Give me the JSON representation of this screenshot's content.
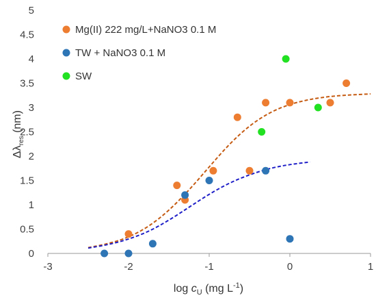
{
  "chart_data": {
    "type": "scatter",
    "xlabel": {
      "prefix": "log ",
      "var": "c",
      "sub": "U",
      "units_open": " (mg L",
      "sup": "-1",
      "units_close": ")"
    },
    "ylabel": {
      "main": "Δλ",
      "sub": "res",
      "units": " (nm)"
    },
    "xlim": [
      -3,
      1
    ],
    "ylim": [
      0,
      5
    ],
    "xticks": [
      -3,
      -2,
      -1,
      0,
      1
    ],
    "yticks": [
      0,
      0.5,
      1,
      1.5,
      2,
      2.5,
      3,
      3.5,
      4,
      4.5,
      5
    ],
    "xtick_labels": [
      "-3",
      "-2",
      "-1",
      "0",
      "1"
    ],
    "ytick_labels": [
      "0",
      "0.5",
      "1",
      "1.5",
      "2",
      "2.5",
      "3",
      "3.5",
      "4",
      "4.5",
      "5"
    ],
    "grid": false,
    "legend_position": "top-left",
    "series": [
      {
        "name": "Mg(II) 222 mg/L+NaNO3 0.1 M",
        "color": "#ED7D31",
        "points": [
          [
            -2.0,
            0.4
          ],
          [
            -1.4,
            1.4
          ],
          [
            -1.3,
            1.1
          ],
          [
            -0.95,
            1.7
          ],
          [
            -0.65,
            2.8
          ],
          [
            -0.5,
            1.7
          ],
          [
            -0.3,
            3.1
          ],
          [
            0.0,
            3.1
          ],
          [
            0.5,
            3.1
          ],
          [
            0.7,
            3.5
          ]
        ]
      },
      {
        "name": "TW + NaNO3 0.1 M",
        "color": "#2E75B6",
        "points": [
          [
            -2.3,
            0.0
          ],
          [
            -2.0,
            0.0
          ],
          [
            -1.7,
            0.2
          ],
          [
            -1.3,
            1.2
          ],
          [
            -1.0,
            1.5
          ],
          [
            -0.3,
            1.7
          ],
          [
            0.0,
            0.3
          ]
        ]
      },
      {
        "name": "SW",
        "color": "#22E022",
        "points": [
          [
            -0.35,
            2.5
          ],
          [
            -0.05,
            4.0
          ],
          [
            0.35,
            3.0
          ]
        ]
      }
    ],
    "fit_curves": [
      {
        "color": "#C55A11",
        "points": [
          [
            -2.5,
            0.12
          ],
          [
            -2.25,
            0.2
          ],
          [
            -2.0,
            0.33
          ],
          [
            -1.75,
            0.55
          ],
          [
            -1.5,
            0.88
          ],
          [
            -1.25,
            1.3
          ],
          [
            -1.0,
            1.78
          ],
          [
            -0.75,
            2.25
          ],
          [
            -0.5,
            2.63
          ],
          [
            -0.25,
            2.9
          ],
          [
            0.0,
            3.07
          ],
          [
            0.25,
            3.17
          ],
          [
            0.5,
            3.23
          ],
          [
            0.75,
            3.26
          ],
          [
            1.0,
            3.28
          ]
        ]
      },
      {
        "color": "#1F1FC8",
        "points": [
          [
            -2.5,
            0.11
          ],
          [
            -2.25,
            0.18
          ],
          [
            -2.0,
            0.29
          ],
          [
            -1.75,
            0.45
          ],
          [
            -1.5,
            0.68
          ],
          [
            -1.25,
            0.95
          ],
          [
            -1.0,
            1.22
          ],
          [
            -0.75,
            1.45
          ],
          [
            -0.5,
            1.62
          ],
          [
            -0.25,
            1.75
          ],
          [
            0.0,
            1.83
          ],
          [
            0.25,
            1.88
          ]
        ]
      }
    ]
  }
}
